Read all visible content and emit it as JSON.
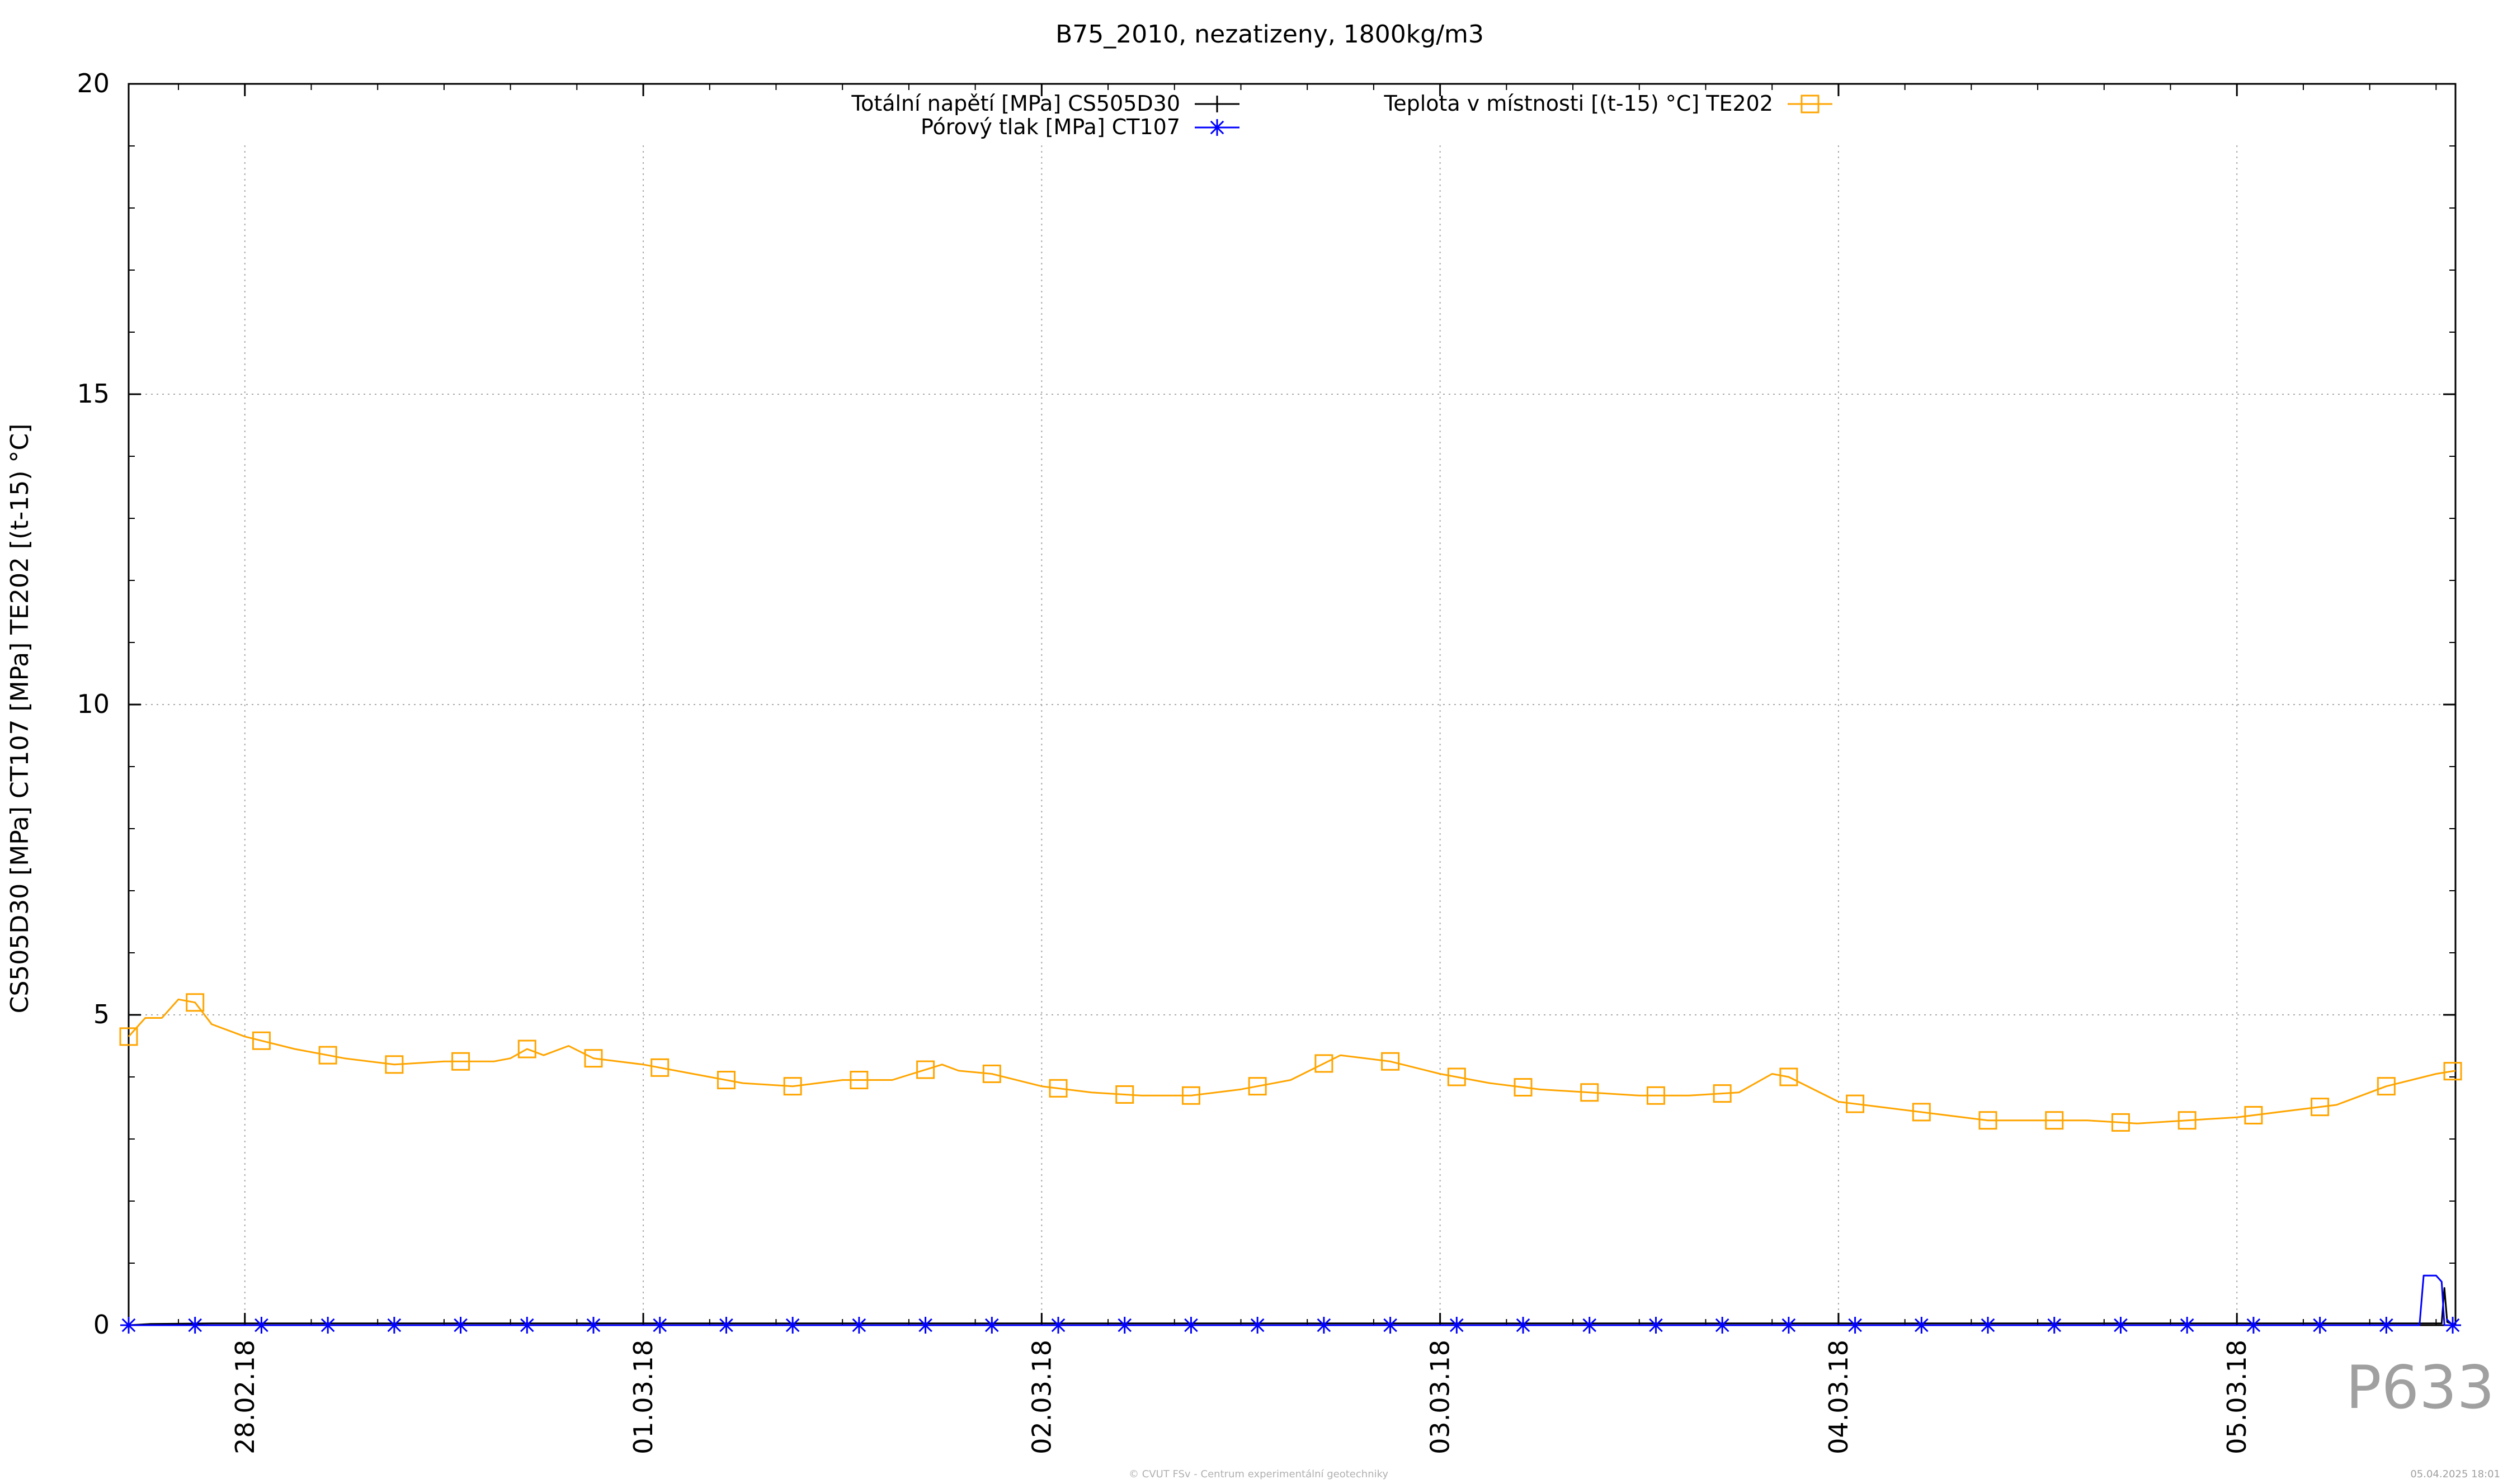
{
  "chart_data": {
    "type": "line",
    "title": "B75_2010, nezatizeny, 1800kg/m3",
    "ylabel": "CS505D30 [MPa] CT107 [MPa] TE202 [(t-15) °C]",
    "xlabel": "",
    "ylim": [
      0,
      20
    ],
    "yticks": [
      0,
      5,
      10,
      15,
      20
    ],
    "xlim": [
      "27.02.18 17:00",
      "05.03.18 13:10"
    ],
    "x_tick_labels": [
      "28.02.18",
      "01.03.18",
      "02.03.18",
      "03.03.18",
      "04.03.18",
      "05.03.18"
    ],
    "grid": true,
    "legend_placement": "top",
    "series": [
      {
        "name": "Totální napětí [MPa] CS505D30",
        "color": "#000000",
        "marker": "plus",
        "points": [
          [
            "27.02.18 17:00",
            0.0
          ],
          [
            "27.02.18 18:20",
            0.02
          ],
          [
            "27.02.18 22:00",
            0.03
          ],
          [
            "28.02.18 06:00",
            0.03
          ],
          [
            "28.02.18 18:00",
            0.03
          ],
          [
            "01.03.18 06:00",
            0.03
          ],
          [
            "01.03.18 18:00",
            0.03
          ],
          [
            "02.03.18 06:00",
            0.03
          ],
          [
            "02.03.18 18:00",
            0.03
          ],
          [
            "03.03.18 06:00",
            0.03
          ],
          [
            "03.03.18 18:00",
            0.03
          ],
          [
            "04.03.18 06:00",
            0.03
          ],
          [
            "04.03.18 18:00",
            0.03
          ],
          [
            "05.03.18 06:00",
            0.03
          ],
          [
            "05.03.18 12:20",
            0.03
          ],
          [
            "05.03.18 12:30",
            0.6
          ],
          [
            "05.03.18 12:40",
            0.05
          ],
          [
            "05.03.18 13:10",
            0.0
          ]
        ]
      },
      {
        "name": "Pórový tlak [MPa] CT107",
        "color": "#0000ff",
        "marker": "star",
        "points": [
          [
            "27.02.18 17:00",
            0.0
          ],
          [
            "27.02.18 22:00",
            0.0
          ],
          [
            "28.02.18 12:00",
            0.0
          ],
          [
            "01.03.18 06:00",
            0.0
          ],
          [
            "02.03.18 06:00",
            0.0
          ],
          [
            "03.03.18 06:00",
            0.0
          ],
          [
            "04.03.18 06:00",
            0.0
          ],
          [
            "05.03.18 06:00",
            0.0
          ],
          [
            "05.03.18 11:00",
            0.0
          ],
          [
            "05.03.18 11:15",
            0.8
          ],
          [
            "05.03.18 12:00",
            0.8
          ],
          [
            "05.03.18 12:20",
            0.7
          ],
          [
            "05.03.18 12:30",
            0.0
          ],
          [
            "05.03.18 13:10",
            0.0
          ]
        ]
      },
      {
        "name": "Teplota v místnosti [(t-15) °C] TE202",
        "color": "#ffa500",
        "marker": "square",
        "points": [
          [
            "27.02.18 17:00",
            4.65
          ],
          [
            "27.02.18 18:00",
            4.95
          ],
          [
            "27.02.18 19:00",
            4.95
          ],
          [
            "27.02.18 20:00",
            5.25
          ],
          [
            "27.02.18 21:00",
            5.2
          ],
          [
            "27.02.18 22:00",
            4.85
          ],
          [
            "28.02.18 00:00",
            4.65
          ],
          [
            "28.02.18 03:00",
            4.45
          ],
          [
            "28.02.18 06:00",
            4.3
          ],
          [
            "28.02.18 09:00",
            4.2
          ],
          [
            "28.02.18 12:00",
            4.25
          ],
          [
            "28.02.18 15:00",
            4.25
          ],
          [
            "28.02.18 16:00",
            4.3
          ],
          [
            "28.02.18 17:00",
            4.45
          ],
          [
            "28.02.18 18:00",
            4.35
          ],
          [
            "28.02.18 19:30",
            4.5
          ],
          [
            "28.02.18 21:00",
            4.3
          ],
          [
            "01.03.18 00:00",
            4.2
          ],
          [
            "01.03.18 03:00",
            4.05
          ],
          [
            "01.03.18 06:00",
            3.9
          ],
          [
            "01.03.18 09:00",
            3.85
          ],
          [
            "01.03.18 12:00",
            3.95
          ],
          [
            "01.03.18 15:00",
            3.95
          ],
          [
            "01.03.18 18:00",
            4.2
          ],
          [
            "01.03.18 19:00",
            4.1
          ],
          [
            "01.03.18 21:00",
            4.05
          ],
          [
            "02.03.18 00:00",
            3.85
          ],
          [
            "02.03.18 03:00",
            3.75
          ],
          [
            "02.03.18 06:00",
            3.7
          ],
          [
            "02.03.18 09:00",
            3.7
          ],
          [
            "02.03.18 12:00",
            3.8
          ],
          [
            "02.03.18 15:00",
            3.95
          ],
          [
            "02.03.18 18:00",
            4.35
          ],
          [
            "02.03.18 21:00",
            4.25
          ],
          [
            "03.03.18 00:00",
            4.05
          ],
          [
            "03.03.18 03:00",
            3.9
          ],
          [
            "03.03.18 06:00",
            3.8
          ],
          [
            "03.03.18 09:00",
            3.75
          ],
          [
            "03.03.18 12:00",
            3.7
          ],
          [
            "03.03.18 15:00",
            3.7
          ],
          [
            "03.03.18 18:00",
            3.75
          ],
          [
            "03.03.18 20:00",
            4.05
          ],
          [
            "03.03.18 21:00",
            4.0
          ],
          [
            "04.03.18 00:00",
            3.6
          ],
          [
            "04.03.18 03:00",
            3.5
          ],
          [
            "04.03.18 06:00",
            3.4
          ],
          [
            "04.03.18 09:00",
            3.3
          ],
          [
            "04.03.18 12:00",
            3.3
          ],
          [
            "04.03.18 15:00",
            3.3
          ],
          [
            "04.03.18 18:00",
            3.25
          ],
          [
            "04.03.18 21:00",
            3.3
          ],
          [
            "05.03.18 00:00",
            3.35
          ],
          [
            "05.03.18 03:00",
            3.45
          ],
          [
            "05.03.18 06:00",
            3.55
          ],
          [
            "05.03.18 09:00",
            3.85
          ],
          [
            "05.03.18 12:00",
            4.05
          ],
          [
            "05.03.18 13:10",
            4.1
          ]
        ]
      }
    ]
  },
  "watermark": "P633",
  "credit": "© CVUT FSv - Centrum experimentální geotechniky",
  "timestamp": "05.04.2025 18:01"
}
